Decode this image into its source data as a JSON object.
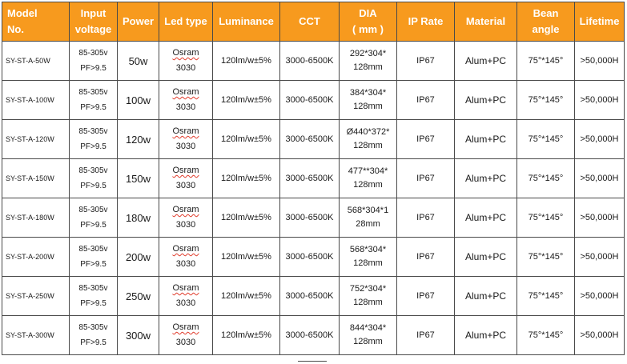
{
  "headers": [
    "Model\nNo.",
    "Input\nvoltage",
    "Power",
    "Led type",
    "Luminance",
    "CCT",
    "DIA\n( mm )",
    "IP Rate",
    "Material",
    "Bean\nangle",
    "Lifetime"
  ],
  "rows": [
    {
      "model": "SY-ST-A-50W",
      "voltage": "85-305v\nPF>9.5",
      "power": "50w",
      "led_brand": "Osram",
      "led_model": "3030",
      "luminance": "120lm/w±5%",
      "cct": "3000-6500K",
      "dia": "292*304*\n128mm",
      "ip": "IP67",
      "material": "Alum+PC",
      "angle": "75°*145°",
      "lifetime": ">50,000H"
    },
    {
      "model": "SY-ST-A-100W",
      "voltage": "85-305v\nPF>9.5",
      "power": "100w",
      "led_brand": "Osram",
      "led_model": "3030",
      "luminance": "120lm/w±5%",
      "cct": "3000-6500K",
      "dia": "384*304*\n128mm",
      "ip": "IP67",
      "material": "Alum+PC",
      "angle": "75°*145°",
      "lifetime": ">50,000H"
    },
    {
      "model": "SY-ST-A-120W",
      "voltage": "85-305v\nPF>9.5",
      "power": "120w",
      "led_brand": "Osram",
      "led_model": "3030",
      "luminance": "120lm/w±5%",
      "cct": "3000-6500K",
      "dia": "Ø440*372*\n128mm",
      "ip": "IP67",
      "material": "Alum+PC",
      "angle": "75°*145°",
      "lifetime": ">50,000H"
    },
    {
      "model": "SY-ST-A-150W",
      "voltage": "85-305v\nPF>9.5",
      "power": "150w",
      "led_brand": "Osram",
      "led_model": "3030",
      "luminance": "120lm/w±5%",
      "cct": "3000-6500K",
      "dia": "477**304*\n128mm",
      "ip": "IP67",
      "material": "Alum+PC",
      "angle": "75°*145°",
      "lifetime": ">50,000H"
    },
    {
      "model": "SY-ST-A-180W",
      "voltage": "85-305v\nPF>9.5",
      "power": "180w",
      "led_brand": "Osram",
      "led_model": "3030",
      "luminance": "120lm/w±5%",
      "cct": "3000-6500K",
      "dia": "568*304*1\n28mm",
      "ip": "IP67",
      "material": "Alum+PC",
      "angle": "75°*145°",
      "lifetime": ">50,000H"
    },
    {
      "model": "SY-ST-A-200W",
      "voltage": "85-305v\nPF>9.5",
      "power": "200w",
      "led_brand": "Osram",
      "led_model": "3030",
      "luminance": "120lm/w±5%",
      "cct": "3000-6500K",
      "dia": "568*304*\n128mm",
      "ip": "IP67",
      "material": "Alum+PC",
      "angle": "75°*145°",
      "lifetime": ">50,000H"
    },
    {
      "model": "SY-ST-A-250W",
      "voltage": "85-305v\nPF>9.5",
      "power": "250w",
      "led_brand": "Osram",
      "led_model": "3030",
      "luminance": "120lm/w±5%",
      "cct": "3000-6500K",
      "dia": "752*304*\n128mm",
      "ip": "IP67",
      "material": "Alum+PC",
      "angle": "75°*145°",
      "lifetime": ">50,000H"
    },
    {
      "model": "SY-ST-A-300W",
      "voltage": "85-305v\nPF>9.5",
      "power": "300w",
      "led_brand": "Osram",
      "led_model": "3030",
      "luminance": "120lm/w±5%",
      "cct": "3000-6500K",
      "dia": "844*304*\n128mm",
      "ip": "IP67",
      "material": "Alum+PC",
      "angle": "75°*145°",
      "lifetime": ">50,000H"
    }
  ],
  "colors": {
    "header_bg": "#f79a1e",
    "header_text": "#ffffff",
    "border": "#4a4a4a",
    "brand_underline": "#e03a2a"
  }
}
